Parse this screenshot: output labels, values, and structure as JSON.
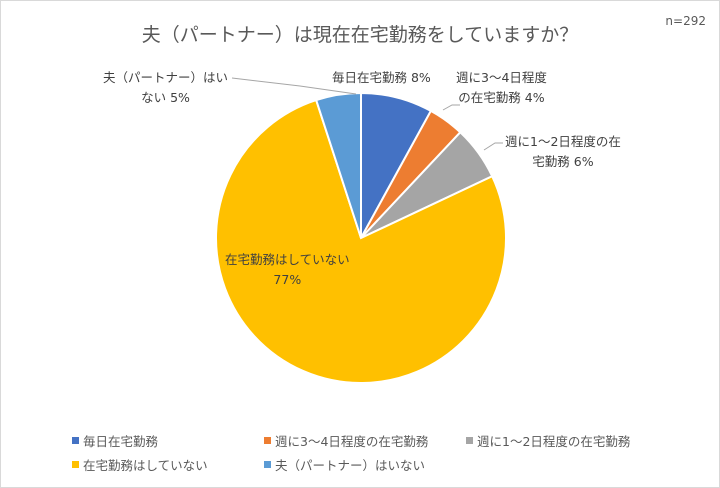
{
  "title": "夫（パートナー）は現在在宅勤務をしていますか？",
  "sample": "n=292",
  "labels": {
    "daily": {
      "line1": "毎日在宅勤務 8%"
    },
    "w34": {
      "line1": "週に3～4日程度",
      "line2": "の在宅勤務 4%"
    },
    "w12": {
      "line1": "週に1～2日程度の在",
      "line2": "宅勤務 6%"
    },
    "none": {
      "line1": "在宅勤務はしていない",
      "line2": "77%"
    },
    "nopartner": {
      "line1": "夫（パートナー）はい",
      "line2": "ない 5%"
    }
  },
  "legend": [
    {
      "label": "毎日在宅勤務",
      "color": "#4472C4"
    },
    {
      "label": "週に3～4日程度の在宅勤務",
      "color": "#ED7D31"
    },
    {
      "label": "週に1～2日程度の在宅勤務",
      "color": "#A5A5A5"
    },
    {
      "label": "在宅勤務はしていない",
      "color": "#FFC000"
    },
    {
      "label": "夫（パートナー）はいない",
      "color": "#5B9BD5"
    }
  ],
  "chart_data": {
    "type": "pie",
    "title": "夫（パートナー）は現在在宅勤務をしていますか？",
    "annotation": "n=292",
    "categories": [
      "毎日在宅勤務",
      "週に3～4日程度の在宅勤務",
      "週に1～2日程度の在宅勤務",
      "在宅勤務はしていない",
      "夫（パートナー）はいない"
    ],
    "values": [
      8,
      4,
      6,
      77,
      5
    ],
    "unit": "%",
    "colors": [
      "#4472C4",
      "#ED7D31",
      "#A5A5A5",
      "#FFC000",
      "#5B9BD5"
    ],
    "start_angle": "12 o'clock, clockwise",
    "legend_position": "bottom"
  }
}
